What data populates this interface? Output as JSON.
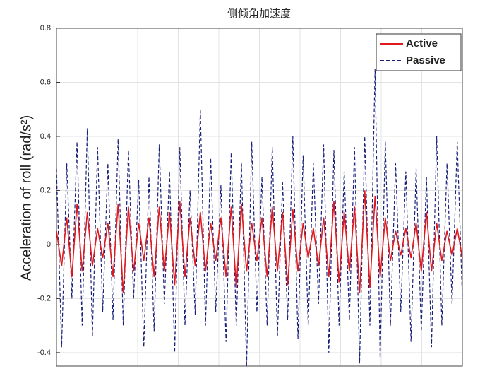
{
  "chart_data": {
    "type": "line",
    "title": "侧倾角加速度",
    "y_label": "Acceleration of roll (rad/s²)",
    "ylim": [
      -0.45,
      0.8
    ],
    "yticks": [
      -0.4,
      -0.2,
      0,
      0.2,
      0.4,
      0.6,
      0.8
    ],
    "grid": true,
    "legend": "upper-right",
    "series": [
      {
        "name": "Active",
        "color": "#e0191e",
        "dash": "solid",
        "values": [
          0.05,
          -0.08,
          0.1,
          -0.12,
          0.15,
          -0.1,
          0.12,
          -0.08,
          0.06,
          -0.05,
          0.08,
          -0.12,
          0.15,
          -0.18,
          0.14,
          -0.1,
          0.08,
          -0.06,
          0.1,
          -0.12,
          0.14,
          -0.1,
          0.12,
          -0.15,
          0.16,
          -0.12,
          0.1,
          -0.08,
          0.12,
          -0.1,
          0.08,
          -0.06,
          0.1,
          -0.12,
          0.14,
          -0.16,
          0.15,
          -0.1,
          0.08,
          -0.06,
          0.1,
          -0.12,
          0.14,
          -0.1,
          0.12,
          -0.15,
          0.13,
          -0.1,
          0.08,
          -0.05,
          0.06,
          -0.08,
          0.1,
          -0.12,
          0.16,
          -0.14,
          0.12,
          -0.1,
          0.14,
          -0.18,
          0.2,
          -0.16,
          0.18,
          -0.12,
          0.1,
          -0.06,
          0.05,
          -0.04,
          0.06,
          -0.05,
          0.08,
          -0.1,
          0.12,
          -0.1,
          0.08,
          -0.06,
          0.05,
          -0.04,
          0.06,
          -0.05
        ]
      },
      {
        "name": "Passive",
        "color": "#1a1f7a",
        "dash": "dashed",
        "values": [
          0.28,
          -0.38,
          0.3,
          -0.2,
          0.38,
          -0.3,
          0.43,
          -0.34,
          0.36,
          -0.25,
          0.3,
          -0.28,
          0.39,
          -0.3,
          0.35,
          -0.2,
          0.24,
          -0.38,
          0.25,
          -0.32,
          0.37,
          -0.22,
          0.27,
          -0.4,
          0.36,
          -0.3,
          0.2,
          -0.26,
          0.5,
          -0.3,
          0.32,
          -0.25,
          0.22,
          -0.36,
          0.34,
          -0.3,
          0.3,
          -0.45,
          0.38,
          -0.25,
          0.25,
          -0.3,
          0.36,
          -0.34,
          0.23,
          -0.28,
          0.4,
          -0.35,
          0.33,
          -0.3,
          0.3,
          -0.22,
          0.37,
          -0.4,
          0.35,
          -0.3,
          0.27,
          -0.28,
          0.36,
          -0.44,
          0.4,
          -0.3,
          0.65,
          -0.42,
          0.38,
          -0.3,
          0.3,
          -0.25,
          0.27,
          -0.36,
          0.28,
          -0.32,
          0.25,
          -0.38,
          0.4,
          -0.3,
          0.3,
          -0.22,
          0.38,
          -0.2
        ]
      }
    ]
  }
}
